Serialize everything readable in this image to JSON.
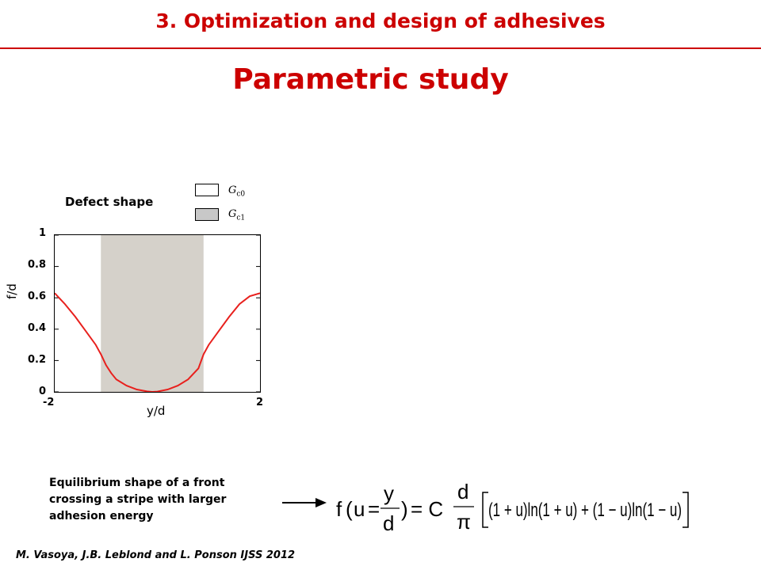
{
  "header": {
    "title": "3. Optimization and design of adhesives"
  },
  "slide": {
    "title": "Parametric study"
  },
  "legend": {
    "items": [
      {
        "symbol": "G",
        "subscript": "c0",
        "fill": "#ffffff"
      },
      {
        "symbol": "G",
        "subscript": "c1",
        "fill": "#c8c8c8"
      }
    ]
  },
  "chart_data": {
    "type": "line",
    "title": "Defect shape",
    "xlabel": "y/d",
    "ylabel": "f/d",
    "xlim": [
      -2,
      2
    ],
    "ylim": [
      0,
      1
    ],
    "x_tick_labels": [
      "-2",
      "2"
    ],
    "y_tick_labels": [
      "0",
      "0.2",
      "0.4",
      "0.6",
      "0.8",
      "1"
    ],
    "shaded_region": {
      "x": [
        -1.1,
        0.9
      ],
      "color": "#d5d1ca"
    },
    "line_color": "#e8201d",
    "grid": false,
    "series": [
      {
        "x": [
          -2.0,
          -1.8,
          -1.6,
          -1.4,
          -1.2,
          -1.1,
          -1.0,
          -0.9,
          -0.8,
          -0.6,
          -0.4,
          -0.2,
          -0.1,
          0.0,
          0.2,
          0.4,
          0.6,
          0.8,
          0.9,
          1.0,
          1.2,
          1.4,
          1.6,
          1.8,
          2.0
        ],
        "values": [
          0.63,
          0.56,
          0.48,
          0.39,
          0.3,
          0.24,
          0.17,
          0.12,
          0.08,
          0.04,
          0.015,
          0.003,
          0.0,
          0.002,
          0.015,
          0.04,
          0.08,
          0.15,
          0.24,
          0.3,
          0.39,
          0.48,
          0.56,
          0.61,
          0.63
        ]
      }
    ]
  },
  "caption": {
    "lines": [
      "Equilibrium shape of a front",
      "crossing a stripe with larger",
      "adhesion energy"
    ]
  },
  "equation": {
    "f": "f",
    "u": "u",
    "eq1": "=",
    "eq2": "= C",
    "y": "y",
    "d1": "d",
    "d2": "d",
    "pi": "π",
    "bracket_body": "(1 + u)ln(1 + u) + (1 − u)ln(1 − u)"
  },
  "footer": {
    "citation": "M. Vasoya, J.B. Leblond and L. Ponson IJSS 2012"
  }
}
